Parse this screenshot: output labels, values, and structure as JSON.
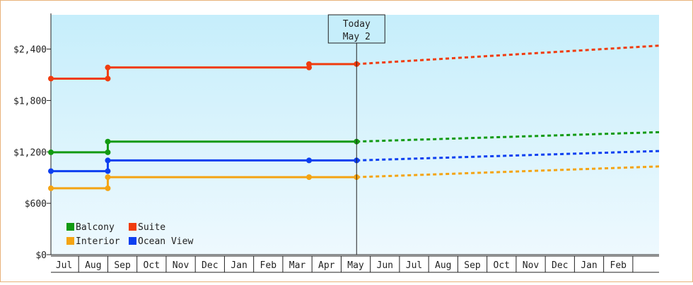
{
  "chart_data": {
    "type": "line",
    "x_months": [
      "Jul",
      "Aug",
      "Sep",
      "Oct",
      "Nov",
      "Dec",
      "Jan",
      "Feb",
      "Mar",
      "Apr",
      "May",
      "Jun",
      "Jul",
      "Aug",
      "Sep",
      "Oct",
      "Nov",
      "Dec",
      "Jan",
      "Feb"
    ],
    "y_ticks": [
      {
        "value": 0,
        "label": "$0"
      },
      {
        "value": 600,
        "label": "$600"
      },
      {
        "value": 1200,
        "label": "$1,200"
      },
      {
        "value": 1800,
        "label": "$1,800"
      },
      {
        "value": 2400,
        "label": "$2,400"
      }
    ],
    "ylim": [
      0,
      2800
    ],
    "xlim_months": [
      -0.45,
      20.4
    ],
    "today": {
      "line1": "Today",
      "line2": "May 2",
      "x": 10.03
    },
    "grid": false,
    "legend_position": "bottom-left",
    "series": [
      {
        "name": "Balcony",
        "color": "#129a12",
        "history": [
          [
            -0.45,
            1195
          ],
          [
            1.5,
            1195
          ],
          [
            1.5,
            1320
          ],
          [
            10.03,
            1320
          ]
        ],
        "markers": [
          [
            -0.45,
            1195
          ],
          [
            1.5,
            1195
          ],
          [
            1.5,
            1320
          ],
          [
            10.03,
            1320
          ]
        ],
        "forecast": [
          [
            10.03,
            1320
          ],
          [
            20.4,
            1430
          ]
        ]
      },
      {
        "name": "Suite",
        "color": "#f03c0e",
        "history": [
          [
            -0.45,
            2055
          ],
          [
            1.5,
            2055
          ],
          [
            1.5,
            2185
          ],
          [
            8.4,
            2185
          ],
          [
            8.4,
            2225
          ],
          [
            10.03,
            2225
          ]
        ],
        "markers": [
          [
            -0.45,
            2055
          ],
          [
            1.5,
            2055
          ],
          [
            1.5,
            2185
          ],
          [
            8.4,
            2185
          ],
          [
            8.4,
            2225
          ],
          [
            10.03,
            2225
          ]
        ],
        "forecast": [
          [
            10.03,
            2225
          ],
          [
            20.4,
            2440
          ]
        ]
      },
      {
        "name": "Interior",
        "color": "#f4a413",
        "history": [
          [
            -0.45,
            775
          ],
          [
            1.5,
            775
          ],
          [
            1.5,
            905
          ],
          [
            8.4,
            905
          ],
          [
            10.03,
            905
          ]
        ],
        "markers": [
          [
            -0.45,
            775
          ],
          [
            1.5,
            775
          ],
          [
            1.5,
            905
          ],
          [
            8.4,
            905
          ],
          [
            10.03,
            905
          ]
        ],
        "forecast": [
          [
            10.03,
            905
          ],
          [
            20.4,
            1030
          ]
        ]
      },
      {
        "name": "Ocean View",
        "color": "#0c3ff0",
        "history": [
          [
            -0.45,
            975
          ],
          [
            1.5,
            975
          ],
          [
            1.5,
            1100
          ],
          [
            8.4,
            1100
          ],
          [
            10.03,
            1100
          ]
        ],
        "markers": [
          [
            -0.45,
            975
          ],
          [
            1.5,
            975
          ],
          [
            1.5,
            1100
          ],
          [
            8.4,
            1100
          ],
          [
            10.03,
            1100
          ]
        ],
        "forecast": [
          [
            10.03,
            1100
          ],
          [
            20.4,
            1210
          ]
        ]
      }
    ],
    "legend_order": [
      "Balcony",
      "Suite",
      "Interior",
      "Ocean View"
    ]
  }
}
